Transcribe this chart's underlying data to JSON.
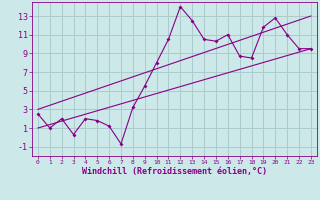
{
  "xlabel": "Windchill (Refroidissement éolien,°C)",
  "bg_color": "#cce8e8",
  "line_color": "#880088",
  "grid_color": "#aacccc",
  "xlim": [
    -0.5,
    23.5
  ],
  "ylim": [
    -2.0,
    14.5
  ],
  "xticks": [
    0,
    1,
    2,
    3,
    4,
    5,
    6,
    7,
    8,
    9,
    10,
    11,
    12,
    13,
    14,
    15,
    16,
    17,
    18,
    19,
    20,
    21,
    22,
    23
  ],
  "yticks": [
    -1,
    1,
    3,
    5,
    7,
    9,
    11,
    13
  ],
  "scatter_x": [
    0,
    1,
    2,
    3,
    4,
    5,
    6,
    7,
    8,
    9,
    10,
    11,
    12,
    13,
    14,
    15,
    16,
    17,
    18,
    19,
    20,
    21,
    22,
    23
  ],
  "scatter_y": [
    2.5,
    1.0,
    2.0,
    0.3,
    2.0,
    1.8,
    1.2,
    -0.7,
    3.2,
    5.5,
    8.0,
    10.5,
    14.0,
    12.5,
    10.5,
    10.3,
    11.0,
    8.7,
    8.5,
    11.8,
    12.8,
    11.0,
    9.5,
    9.5
  ],
  "line1_x": [
    0,
    23
  ],
  "line1_y": [
    1.0,
    9.5
  ],
  "line2_x": [
    0,
    23
  ],
  "line2_y": [
    3.0,
    13.0
  ],
  "xlabel_fontsize": 6.0,
  "tick_fontsize_x": 4.5,
  "tick_fontsize_y": 6.0
}
